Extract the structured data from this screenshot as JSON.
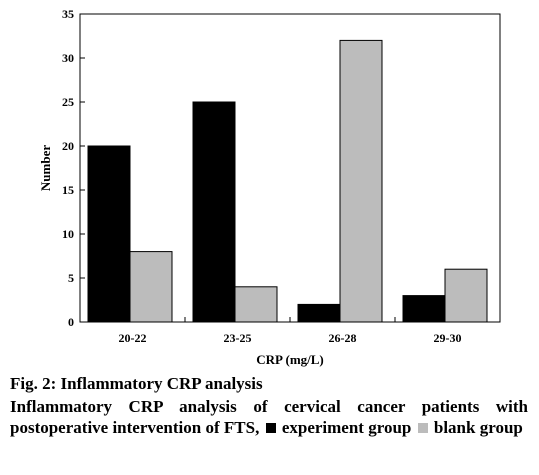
{
  "colors": {
    "experiment": "#000000",
    "blank": "#bcbcbc"
  },
  "caption": {
    "figure_title": "Fig. 2: Inflammatory CRP analysis",
    "description": "Inflammatory CRP analysis of cervical cancer patients with postoperative intervention of FTS,",
    "experiment_label": "experiment group",
    "blank_label": "blank group"
  },
  "chart_data": {
    "type": "bar",
    "title": "",
    "xlabel": "CRP (mg/L)",
    "ylabel": "Number",
    "ylim": [
      0,
      35
    ],
    "yticks": [
      0,
      5,
      10,
      15,
      20,
      25,
      30,
      35
    ],
    "grid": false,
    "legend": "none",
    "categories": [
      "20-22",
      "23-25",
      "26-28",
      "29-30"
    ],
    "series": [
      {
        "values": [
          20,
          25,
          2,
          3
        ],
        "color": "#000000"
      },
      {
        "values": [
          8,
          4,
          32,
          6
        ],
        "color": "#bcbcbc"
      }
    ]
  }
}
